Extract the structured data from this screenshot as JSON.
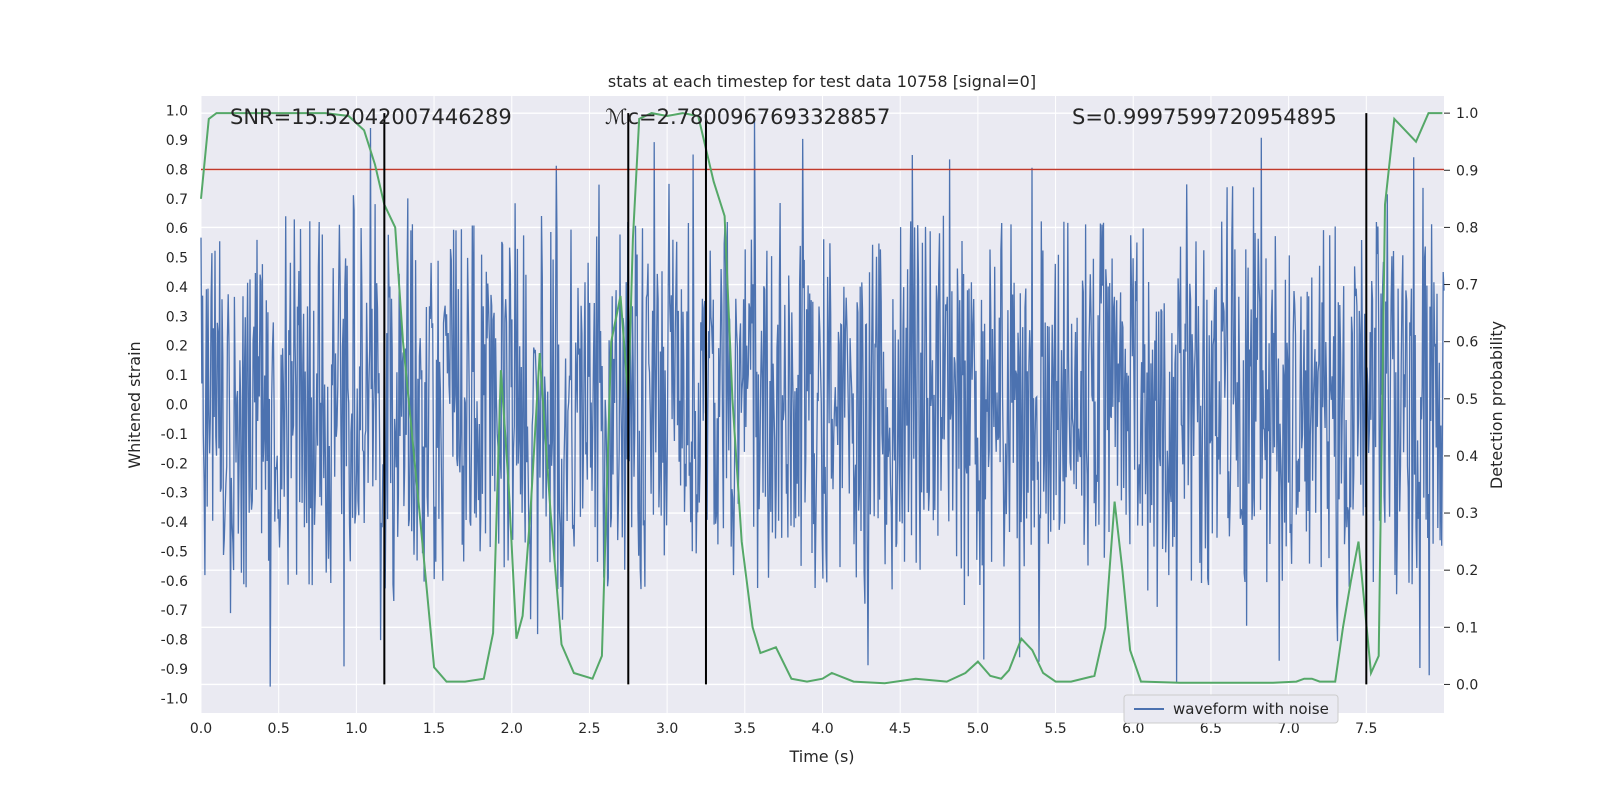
{
  "chart_data": {
    "type": "line",
    "title": "stats at each timestep for test data 10758 [signal=0]",
    "xlabel": "Time (s)",
    "ylabel": "Whitened strain",
    "ylabel_right": "Detection probability",
    "xlim": [
      0.0,
      8.0
    ],
    "ylim": [
      -1.05,
      1.05
    ],
    "ylim_right": [
      -0.05,
      1.03
    ],
    "x_ticks": [
      0.0,
      0.5,
      1.0,
      1.5,
      2.0,
      2.5,
      3.0,
      3.5,
      4.0,
      4.5,
      5.0,
      5.5,
      6.0,
      6.5,
      7.0,
      7.5
    ],
    "x_tick_labels": [
      "0.0",
      "0.5",
      "1.0",
      "1.5",
      "2.0",
      "2.5",
      "3.0",
      "3.5",
      "4.0",
      "4.5",
      "5.0",
      "5.5",
      "6.0",
      "6.5",
      "7.0",
      "7.5"
    ],
    "y_ticks": [
      -1.0,
      -0.9,
      -0.8,
      -0.7,
      -0.6,
      -0.5,
      -0.4,
      -0.3,
      -0.2,
      -0.1,
      0.0,
      0.1,
      0.2,
      0.3,
      0.4,
      0.5,
      0.6,
      0.7,
      0.8,
      0.9,
      1.0
    ],
    "y_tick_labels": [
      "-1.0",
      "-0.9",
      "-0.8",
      "-0.7",
      "-0.6",
      "-0.5",
      "-0.4",
      "-0.3",
      "-0.2",
      "-0.1",
      "0.0",
      "0.1",
      "0.2",
      "0.3",
      "0.4",
      "0.5",
      "0.6",
      "0.7",
      "0.8",
      "0.9",
      "1.0"
    ],
    "y2_ticks": [
      0.0,
      0.1,
      0.2,
      0.3,
      0.4,
      0.5,
      0.6,
      0.7,
      0.8,
      0.9,
      1.0
    ],
    "y2_tick_labels": [
      "0.0",
      "0.1",
      "0.2",
      "0.3",
      "0.4",
      "0.5",
      "0.6",
      "0.7",
      "0.8",
      "0.9",
      "1.0"
    ],
    "threshold": {
      "axis": "left",
      "value": 0.8,
      "color": "#c0392b"
    },
    "annotations": [
      {
        "text": "SNR=15.52042007446289",
        "x": 0.2
      },
      {
        "text": "ℳc=2.7800967693328857",
        "x": 2.6
      },
      {
        "text": "S=0.9997599720954895",
        "x": 5.6
      }
    ],
    "vertical_lines": [
      1.18,
      2.75,
      3.25,
      7.5
    ],
    "vline_range_right": [
      0.0,
      1.0
    ],
    "series": [
      {
        "name": "waveform with noise",
        "axis": "left",
        "color": "#4c72b0",
        "style": "dense noise; upper envelope ~0.4-0.9, lower envelope ~-0.4 to -0.95, peak +1.0",
        "samples": 1600,
        "peak_pos": 0.97,
        "peak_neg": -0.96
      },
      {
        "name": "detection probability",
        "axis": "right",
        "color": "#55a868",
        "x": [
          0.0,
          0.05,
          0.1,
          0.2,
          0.4,
          0.6,
          0.8,
          0.95,
          1.05,
          1.12,
          1.18,
          1.25,
          1.3,
          1.4,
          1.5,
          1.58,
          1.7,
          1.82,
          1.88,
          1.93,
          1.98,
          2.03,
          2.07,
          2.12,
          2.18,
          2.25,
          2.32,
          2.4,
          2.52,
          2.58,
          2.64,
          2.7,
          2.75,
          2.78,
          2.82,
          2.9,
          3.0,
          3.1,
          3.2,
          3.3,
          3.37,
          3.42,
          3.48,
          3.55,
          3.6,
          3.7,
          3.8,
          3.9,
          4.0,
          4.06,
          4.2,
          4.4,
          4.6,
          4.8,
          4.92,
          5.0,
          5.08,
          5.15,
          5.2,
          5.28,
          5.35,
          5.42,
          5.5,
          5.6,
          5.75,
          5.82,
          5.88,
          5.93,
          5.98,
          6.05,
          6.3,
          6.6,
          6.9,
          7.05,
          7.1,
          7.15,
          7.2,
          7.3,
          7.35,
          7.4,
          7.45,
          7.53,
          7.58,
          7.62,
          7.68,
          7.75,
          7.82,
          7.9,
          7.99
        ],
        "y": [
          0.85,
          0.99,
          1.0,
          1.0,
          1.0,
          1.0,
          1.0,
          0.995,
          0.97,
          0.91,
          0.84,
          0.8,
          0.6,
          0.32,
          0.03,
          0.005,
          0.005,
          0.01,
          0.09,
          0.55,
          0.35,
          0.08,
          0.12,
          0.3,
          0.58,
          0.3,
          0.07,
          0.02,
          0.01,
          0.05,
          0.6,
          0.68,
          0.5,
          0.78,
          0.99,
          1.0,
          0.995,
          1.0,
          0.995,
          0.88,
          0.82,
          0.5,
          0.25,
          0.1,
          0.055,
          0.065,
          0.01,
          0.005,
          0.01,
          0.02,
          0.005,
          0.002,
          0.01,
          0.005,
          0.02,
          0.04,
          0.015,
          0.01,
          0.025,
          0.08,
          0.06,
          0.02,
          0.005,
          0.005,
          0.015,
          0.1,
          0.32,
          0.2,
          0.06,
          0.005,
          0.003,
          0.003,
          0.003,
          0.005,
          0.01,
          0.01,
          0.005,
          0.005,
          0.1,
          0.18,
          0.25,
          0.02,
          0.05,
          0.84,
          0.99,
          0.97,
          0.95,
          1.0,
          1.0
        ]
      }
    ],
    "legend": {
      "position": "bottom-right",
      "entries": [
        "waveform with noise"
      ]
    }
  },
  "colors": {
    "plot_background": "#eaeaf2",
    "grid": "#ffffff",
    "strain": "#4c72b0",
    "probability": "#55a868",
    "threshold": "#c0392b",
    "marker": "#000000",
    "text": "#262626"
  }
}
